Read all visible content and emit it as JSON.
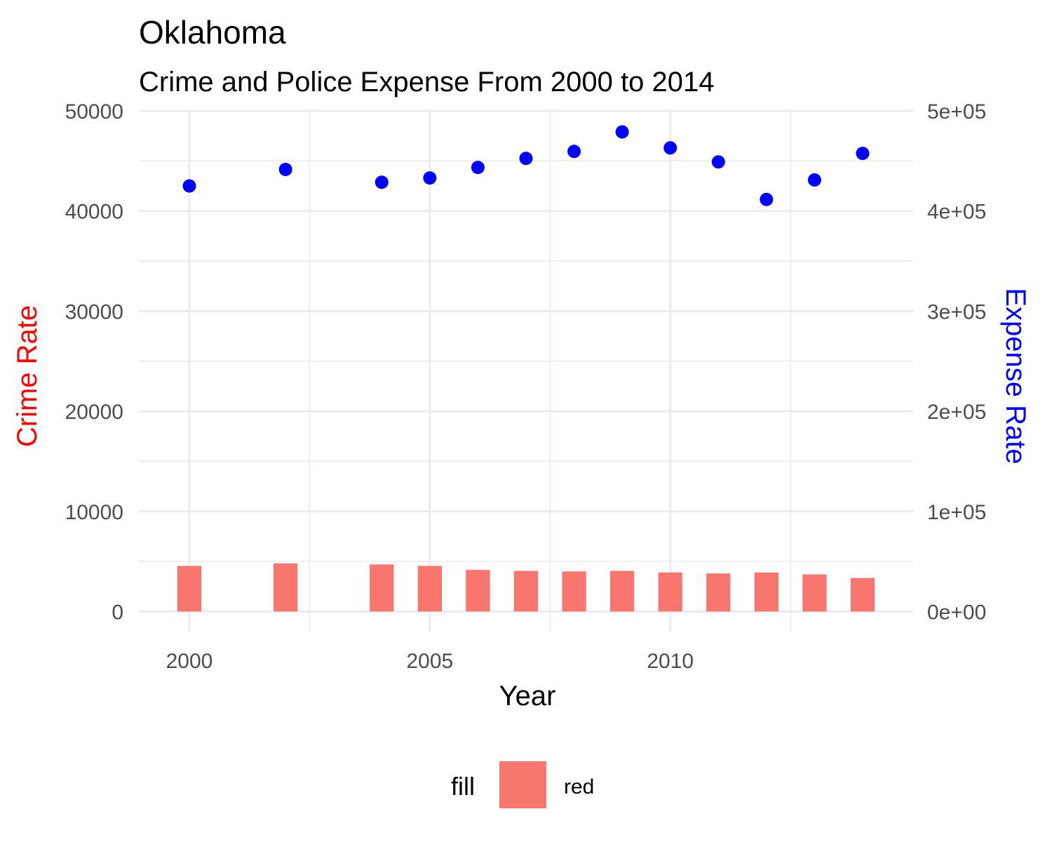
{
  "chart_data": {
    "type": "bar+scatter",
    "title": "Oklahoma",
    "subtitle": "Crime and Police Expense From 2000 to 2014",
    "xlabel": "Year",
    "ylabel_left": "Crime Rate",
    "ylabel_right": "Expense Rate",
    "xlim": [
      1998.95,
      2015.05
    ],
    "x_ticks": [
      2000,
      2005,
      2010
    ],
    "x_tick_labels": [
      "2000",
      "2005",
      "2010"
    ],
    "ylim_left": [
      -2000,
      50000
    ],
    "y_ticks_left": [
      0,
      10000,
      20000,
      30000,
      40000,
      50000
    ],
    "y_tick_labels_left": [
      "0",
      "10000",
      "20000",
      "30000",
      "40000",
      "50000"
    ],
    "ylim_right": [
      -20000,
      500000
    ],
    "y_ticks_right": [
      0,
      100000,
      200000,
      300000,
      400000,
      500000
    ],
    "y_tick_labels_right": [
      "0e+00",
      "1e+05",
      "2e+05",
      "3e+05",
      "4e+05",
      "5e+05"
    ],
    "grid": true,
    "colors": {
      "bar": "#f8766d",
      "point": "#0000ff",
      "ylabel_left": "#ff0000",
      "ylabel_right": "#0000ff"
    },
    "series": [
      {
        "name": "Crime Rate",
        "type": "bar",
        "axis": "left",
        "x": [
          2000,
          2002,
          2004,
          2005,
          2006,
          2007,
          2008,
          2009,
          2010,
          2011,
          2012,
          2013,
          2014
        ],
        "values": [
          4550,
          4800,
          4700,
          4550,
          4150,
          4050,
          4000,
          4050,
          3900,
          3800,
          3900,
          3700,
          3350
        ]
      },
      {
        "name": "Expense Rate",
        "type": "scatter",
        "axis": "right",
        "x": [
          2000,
          2002,
          2004,
          2005,
          2006,
          2007,
          2008,
          2009,
          2010,
          2011,
          2012,
          2013,
          2014
        ],
        "values": [
          425000,
          441500,
          428700,
          433000,
          443500,
          452500,
          459500,
          479000,
          463000,
          449000,
          411500,
          431000,
          457500
        ]
      }
    ],
    "legend": {
      "title": "fill",
      "entries": [
        "red"
      ],
      "position": "bottom"
    }
  }
}
